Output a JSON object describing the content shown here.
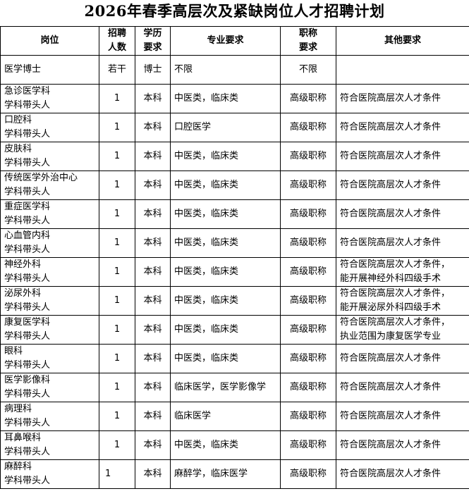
{
  "title": "2026年春季高层次及紧缺岗位人才招聘计划",
  "headers": {
    "position": "岗位",
    "count": [
      "招聘",
      "人数"
    ],
    "education": [
      "学历",
      "要求"
    ],
    "major": "专业要求",
    "rank": [
      "职称",
      "要求"
    ],
    "other": "其他要求"
  },
  "rows": [
    {
      "position": [
        "医学博士",
        ""
      ],
      "count": "若干",
      "education": "博士",
      "major": "不限",
      "rank": "不限",
      "other": [
        "",
        ""
      ]
    },
    {
      "position": [
        "急诊医学科",
        "学科带头人"
      ],
      "count": "1",
      "education": "本科",
      "major": "中医类，临床类",
      "rank": "高级职称",
      "other": [
        "符合医院高层次人才条件",
        ""
      ]
    },
    {
      "position": [
        "口腔科",
        "学科带头人"
      ],
      "count": "1",
      "education": "本科",
      "major": "口腔医学",
      "rank": "高级职称",
      "other": [
        "符合医院高层次人才条件",
        ""
      ]
    },
    {
      "position": [
        "皮肤科",
        "学科带头人"
      ],
      "count": "1",
      "education": "本科",
      "major": "中医类，临床类",
      "rank": "高级职称",
      "other": [
        "符合医院高层次人才条件",
        ""
      ]
    },
    {
      "position": [
        "传统医学外治中心",
        "学科带头人"
      ],
      "count": "1",
      "education": "本科",
      "major": "中医类，临床类",
      "rank": "高级职称",
      "other": [
        "符合医院高层次人才条件",
        ""
      ]
    },
    {
      "position": [
        "重症医学科",
        "学科带头人"
      ],
      "count": "1",
      "education": "本科",
      "major": "中医类，临床类",
      "rank": "高级职称",
      "other": [
        "符合医院高层次人才条件",
        ""
      ]
    },
    {
      "position": [
        "心血管内科",
        "学科带头人"
      ],
      "count": "1",
      "education": "本科",
      "major": "中医类，临床类",
      "rank": "高级职称",
      "other": [
        "符合医院高层次人才条件",
        ""
      ]
    },
    {
      "position": [
        "神经外科",
        "学科带头人"
      ],
      "count": "1",
      "education": "本科",
      "major": "中医类，临床类",
      "rank": "高级职称",
      "other": [
        "符合医院高层次人才条件，",
        "能开展神经外科四级手术"
      ]
    },
    {
      "position": [
        "泌尿外科",
        "学科带头人"
      ],
      "count": "1",
      "education": "本科",
      "major": "中医类，临床类",
      "rank": "高级职称",
      "other": [
        "符合医院高层次人才条件，",
        "能开展泌尿外科四级手术"
      ]
    },
    {
      "position": [
        "康复医学科",
        "学科带头人"
      ],
      "count": "1",
      "education": "本科",
      "major": "中医类，临床类",
      "rank": "高级职称",
      "other": [
        "符合医院高层次人才条件，",
        "执业范围为康复医学专业"
      ]
    },
    {
      "position": [
        "眼科",
        "学科带头人"
      ],
      "count": "1",
      "education": "本科",
      "major": "中医类，临床类",
      "rank": "高级职称",
      "other": [
        "符合医院高层次人才条件",
        ""
      ]
    },
    {
      "position": [
        "医学影像科",
        "学科带头人"
      ],
      "count": "1",
      "education": "本科",
      "major": "临床医学，医学影像学",
      "rank": "高级职称",
      "other": [
        "符合医院高层次人才条件",
        ""
      ]
    },
    {
      "position": [
        "病理科",
        "学科带头人"
      ],
      "count": "1",
      "education": "本科",
      "major": "临床医学",
      "rank": "高级职称",
      "other": [
        "符合医院高层次人才条件",
        ""
      ]
    },
    {
      "position": [
        "耳鼻喉科",
        "学科带头人"
      ],
      "count": "1",
      "education": "本科",
      "major": "中医类，临床类",
      "rank": "高级职称",
      "other": [
        "符合医院高层次人才条件",
        ""
      ]
    },
    {
      "position": [
        "麻醉科",
        "学科带头人"
      ],
      "count": "1",
      "education": "本科",
      "major": "麻醉学，临床医学",
      "rank": "高级职称",
      "other": [
        "符合医院高层次人才条件",
        ""
      ]
    }
  ]
}
